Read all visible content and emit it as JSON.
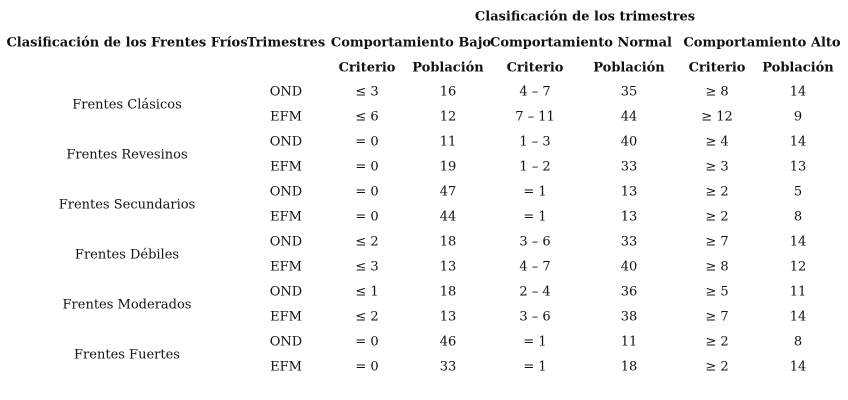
{
  "table": {
    "group_header": "Clasificación de los trimestres",
    "headers": [
      "Clasificación de los Frentes Fríos",
      "Trimestres",
      "Comportamiento Bajo",
      "Comportamiento Normal",
      "Comportamiento Alto"
    ],
    "subheaders": [
      "Criterio",
      "Población",
      "Criterio",
      "Población",
      "Criterio",
      "Población"
    ],
    "groups": [
      {
        "name": "Frentes Clásicos",
        "rows": [
          [
            "OND",
            "≤ 3",
            16,
            "4 – 7",
            35,
            "≥ 8",
            14
          ],
          [
            "EFM",
            "≤ 6",
            12,
            "7 – 11",
            44,
            "≥ 12",
            9
          ]
        ]
      },
      {
        "name": "Frentes Revesinos",
        "rows": [
          [
            "OND",
            "= 0",
            11,
            "1 – 3",
            40,
            "≥ 4",
            14
          ],
          [
            "EFM",
            "= 0",
            19,
            "1 – 2",
            33,
            "≥ 3",
            13
          ]
        ]
      },
      {
        "name": "Frentes Secundarios",
        "rows": [
          [
            "OND",
            "= 0",
            47,
            "= 1",
            13,
            "≥ 2",
            5
          ],
          [
            "EFM",
            "= 0",
            44,
            "= 1",
            13,
            "≥ 2",
            8
          ]
        ]
      },
      {
        "name": "Frentes Débiles",
        "rows": [
          [
            "OND",
            "≤ 2",
            18,
            "3 – 6",
            33,
            "≥ 7",
            14
          ],
          [
            "EFM",
            "≤ 3",
            13,
            "4 – 7",
            40,
            "≥ 8",
            12
          ]
        ]
      },
      {
        "name": "Frentes Moderados",
        "rows": [
          [
            "OND",
            "≤ 1",
            18,
            "2 – 4",
            36,
            "≥ 5",
            11
          ],
          [
            "EFM",
            "≤ 2",
            13,
            "3 – 6",
            38,
            "≥ 7",
            14
          ]
        ]
      },
      {
        "name": "Frentes Fuertes",
        "rows": [
          [
            "OND",
            "= 0",
            46,
            "= 1",
            11,
            "≥ 2",
            8
          ],
          [
            "EFM",
            "= 0",
            33,
            "= 1",
            18,
            "≥ 2",
            14
          ]
        ]
      }
    ]
  }
}
